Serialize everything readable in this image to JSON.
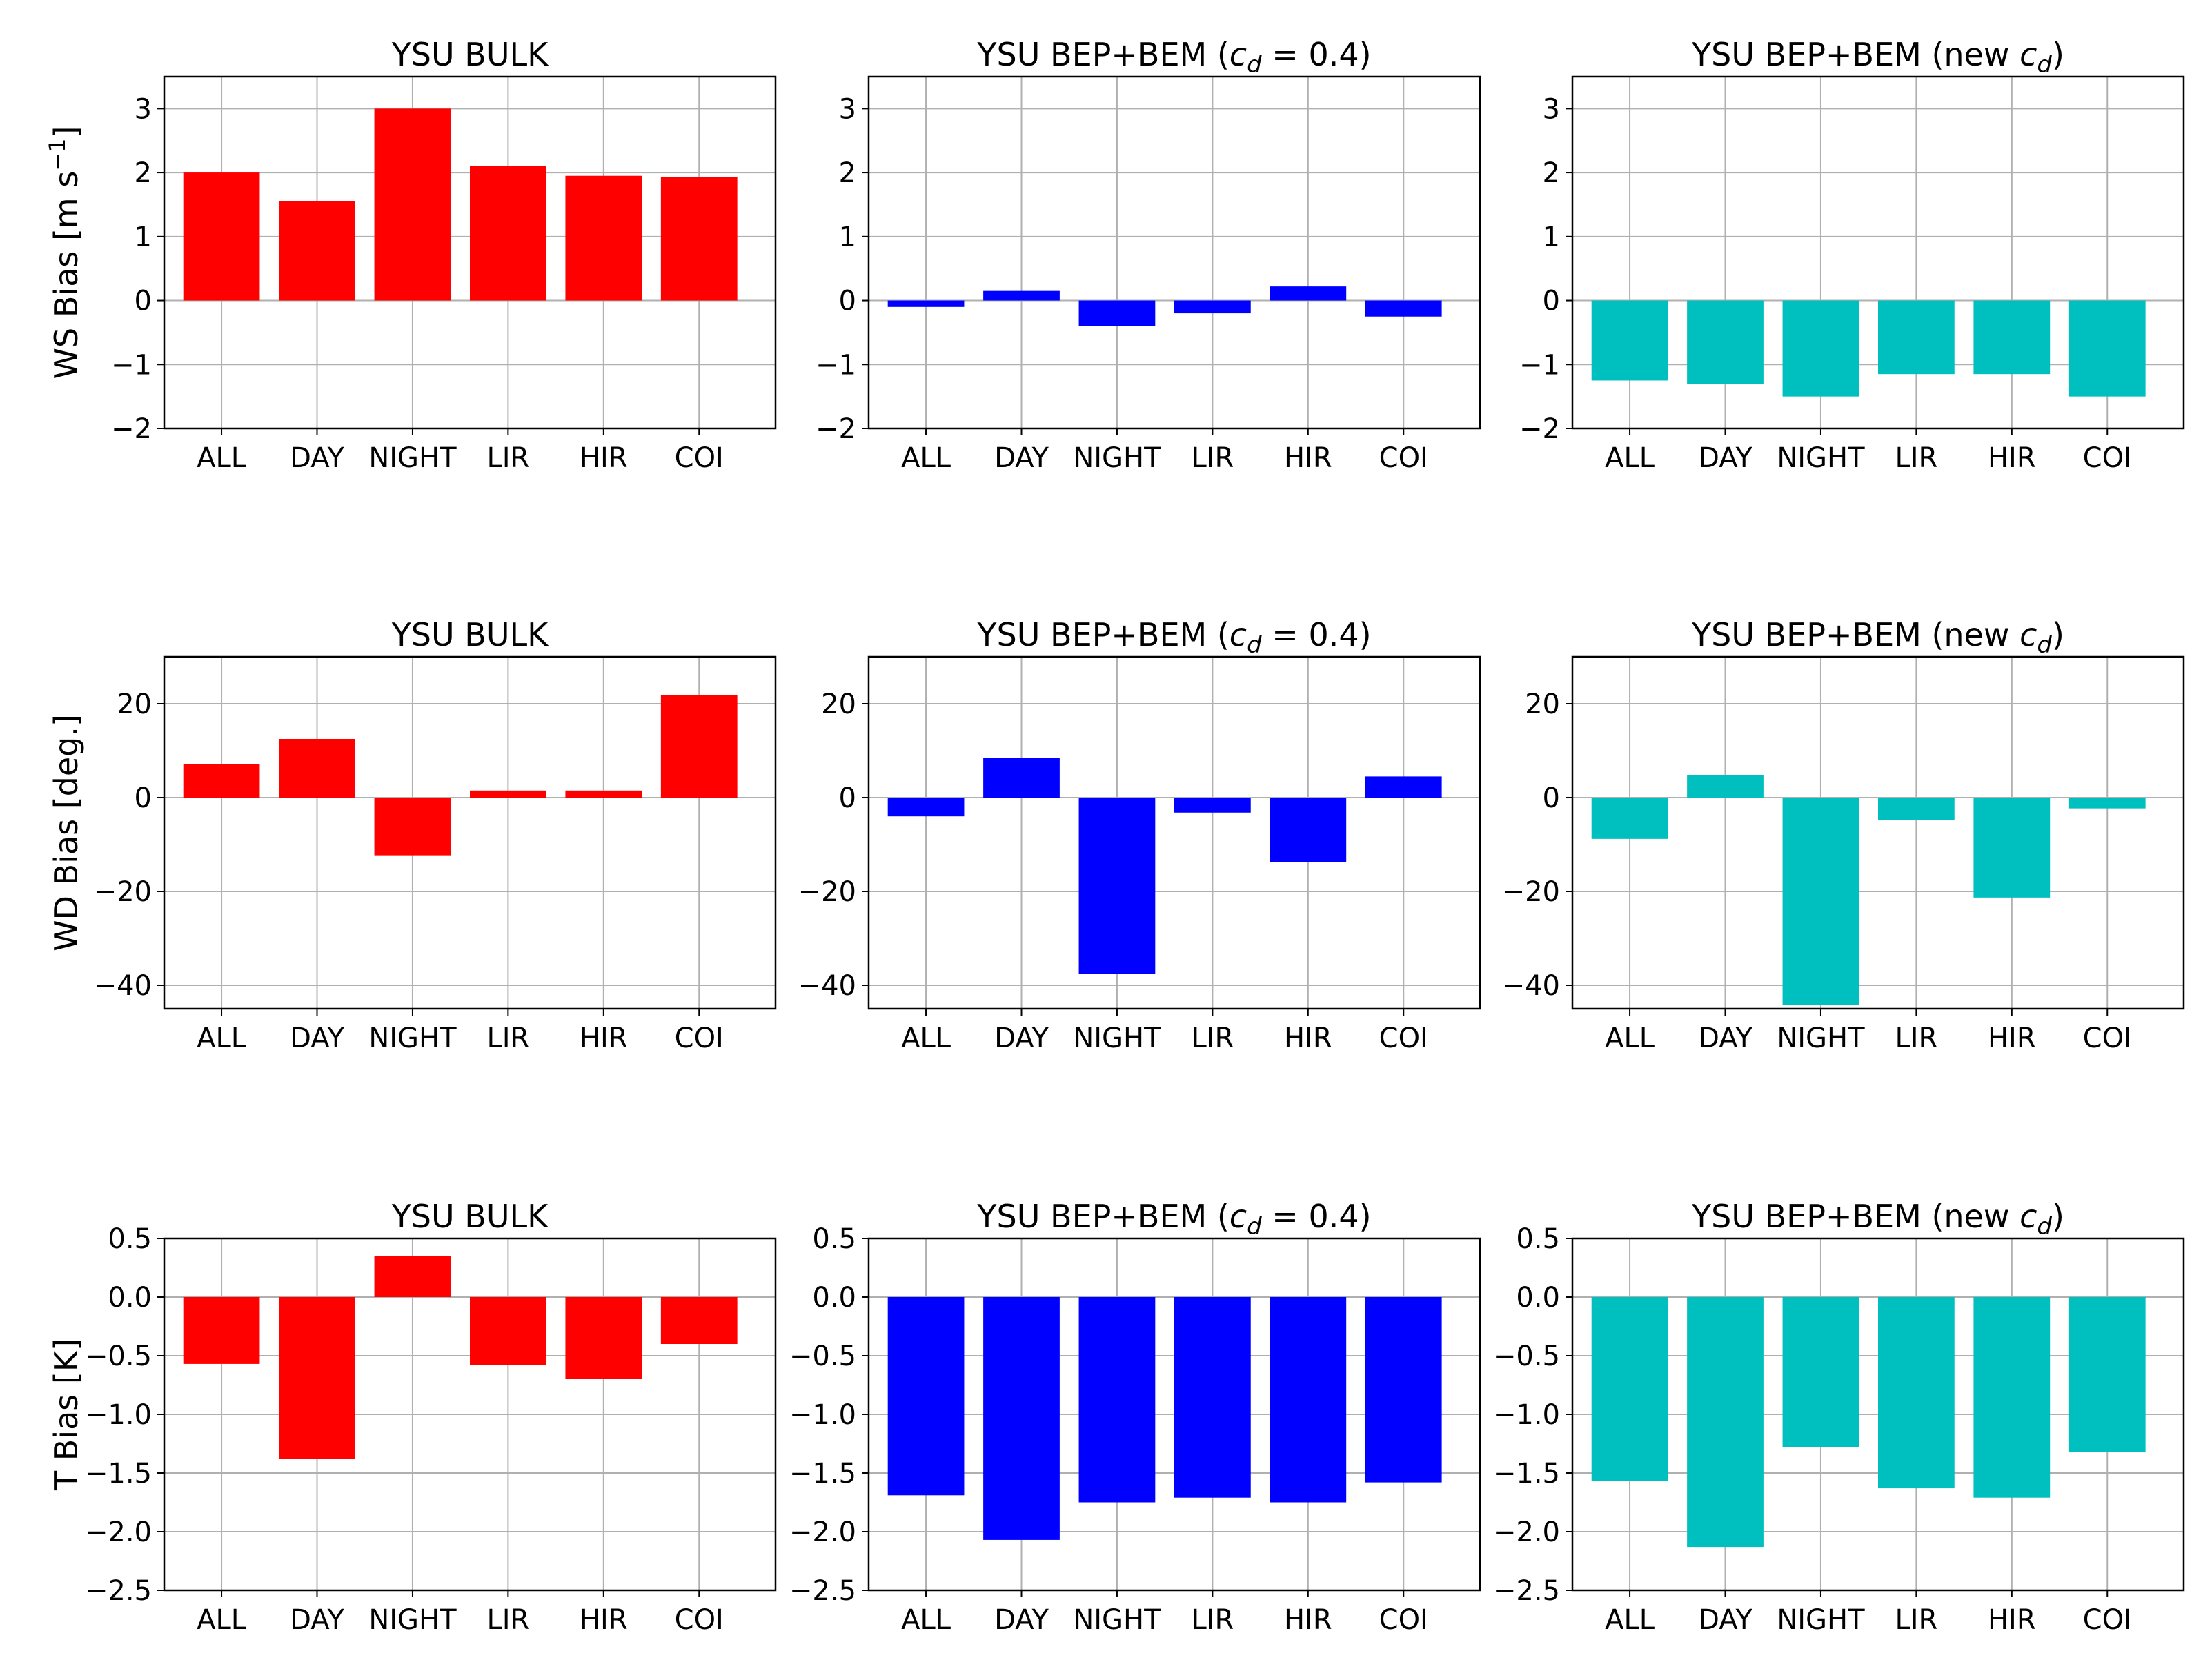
{
  "chart_data": [
    {
      "type": "bar",
      "title": "YSU BULK",
      "ylabel": "WS Bias [m s⁻¹]",
      "categories": [
        "ALL",
        "DAY",
        "NIGHT",
        "LIR",
        "HIR",
        "COI"
      ],
      "values": [
        2.0,
        1.55,
        3.0,
        2.1,
        1.95,
        1.93
      ],
      "ylim": [
        -2,
        3.5
      ],
      "yticks": [
        -2,
        -1,
        0,
        1,
        2,
        3
      ],
      "ytick_labels": [
        "−2",
        "−1",
        "0",
        "1",
        "2",
        "3"
      ],
      "color": "#ff0000",
      "grid": true
    },
    {
      "type": "bar",
      "title": "YSU BEP+BEM (c_d = 0.4)",
      "ylabel": "",
      "categories": [
        "ALL",
        "DAY",
        "NIGHT",
        "LIR",
        "HIR",
        "COI"
      ],
      "values": [
        -0.1,
        0.15,
        -0.4,
        -0.2,
        0.22,
        -0.25
      ],
      "ylim": [
        -2,
        3.5
      ],
      "yticks": [
        -2,
        -1,
        0,
        1,
        2,
        3
      ],
      "ytick_labels": [
        "−2",
        "−1",
        "0",
        "1",
        "2",
        "3"
      ],
      "color": "#0000ff",
      "grid": true
    },
    {
      "type": "bar",
      "title": "YSU BEP+BEM (new c_d)",
      "ylabel": "",
      "categories": [
        "ALL",
        "DAY",
        "NIGHT",
        "LIR",
        "HIR",
        "COI"
      ],
      "values": [
        -1.25,
        -1.3,
        -1.5,
        -1.15,
        -1.15,
        -1.5
      ],
      "ylim": [
        -2,
        3.5
      ],
      "yticks": [
        -2,
        -1,
        0,
        1,
        2,
        3
      ],
      "ytick_labels": [
        "−2",
        "−1",
        "0",
        "1",
        "2",
        "3"
      ],
      "color": "#00bfbf",
      "grid": true
    },
    {
      "type": "bar",
      "title": "YSU BULK",
      "ylabel": "WD Bias [deg.]",
      "categories": [
        "ALL",
        "DAY",
        "NIGHT",
        "LIR",
        "HIR",
        "COI"
      ],
      "values": [
        7.2,
        12.5,
        -12.3,
        1.5,
        1.5,
        21.8
      ],
      "ylim": [
        -45,
        30
      ],
      "yticks": [
        -40,
        -20,
        0,
        20
      ],
      "ytick_labels": [
        "−40",
        "−20",
        "0",
        "20"
      ],
      "color": "#ff0000",
      "grid": true
    },
    {
      "type": "bar",
      "title": "YSU BEP+BEM (c_d = 0.4)",
      "ylabel": "",
      "categories": [
        "ALL",
        "DAY",
        "NIGHT",
        "LIR",
        "HIR",
        "COI"
      ],
      "values": [
        -4.0,
        8.4,
        -37.5,
        -3.2,
        -13.8,
        4.5
      ],
      "ylim": [
        -45,
        30
      ],
      "yticks": [
        -40,
        -20,
        0,
        20
      ],
      "ytick_labels": [
        "−40",
        "−20",
        "0",
        "20"
      ],
      "color": "#0000ff",
      "grid": true
    },
    {
      "type": "bar",
      "title": "YSU BEP+BEM (new c_d)",
      "ylabel": "",
      "categories": [
        "ALL",
        "DAY",
        "NIGHT",
        "LIR",
        "HIR",
        "COI"
      ],
      "values": [
        -8.8,
        4.8,
        -44.2,
        -4.8,
        -21.3,
        -2.3
      ],
      "ylim": [
        -45,
        30
      ],
      "yticks": [
        -40,
        -20,
        0,
        20
      ],
      "ytick_labels": [
        "−40",
        "−20",
        "0",
        "20"
      ],
      "color": "#00bfbf",
      "grid": true
    },
    {
      "type": "bar",
      "title": "YSU BULK",
      "ylabel": "T Bias [K]",
      "categories": [
        "ALL",
        "DAY",
        "NIGHT",
        "LIR",
        "HIR",
        "COI"
      ],
      "values": [
        -0.57,
        -1.38,
        0.35,
        -0.58,
        -0.7,
        -0.4
      ],
      "ylim": [
        -2.5,
        0.5
      ],
      "yticks": [
        -2.5,
        -2.0,
        -1.5,
        -1.0,
        -0.5,
        0.0,
        0.5
      ],
      "ytick_labels": [
        "−2.5",
        "−2.0",
        "−1.5",
        "−1.0",
        "−0.5",
        "0.0",
        "0.5"
      ],
      "color": "#ff0000",
      "grid": true
    },
    {
      "type": "bar",
      "title": "YSU BEP+BEM (c_d = 0.4)",
      "ylabel": "",
      "categories": [
        "ALL",
        "DAY",
        "NIGHT",
        "LIR",
        "HIR",
        "COI"
      ],
      "values": [
        -1.69,
        -2.07,
        -1.75,
        -1.71,
        -1.75,
        -1.58
      ],
      "ylim": [
        -2.5,
        0.5
      ],
      "yticks": [
        -2.5,
        -2.0,
        -1.5,
        -1.0,
        -0.5,
        0.0,
        0.5
      ],
      "ytick_labels": [
        "−2.5",
        "−2.0",
        "−1.5",
        "−1.0",
        "−0.5",
        "0.0",
        "0.5"
      ],
      "color": "#0000ff",
      "grid": true
    },
    {
      "type": "bar",
      "title": "YSU BEP+BEM (new c_d)",
      "ylabel": "",
      "categories": [
        "ALL",
        "DAY",
        "NIGHT",
        "LIR",
        "HIR",
        "COI"
      ],
      "values": [
        -1.57,
        -2.13,
        -1.28,
        -1.63,
        -1.71,
        -1.32
      ],
      "ylim": [
        -2.5,
        0.5
      ],
      "yticks": [
        -2.5,
        -2.0,
        -1.5,
        -1.0,
        -0.5,
        0.0,
        0.5
      ],
      "ytick_labels": [
        "−2.5",
        "−2.0",
        "−1.5",
        "−1.0",
        "−0.5",
        "0.0",
        "0.5"
      ],
      "color": "#00bfbf",
      "grid": true
    }
  ]
}
